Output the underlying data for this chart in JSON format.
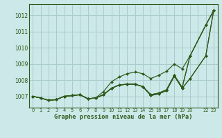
{
  "bg_color": "#cce8e8",
  "grid_color": "#aacccc",
  "line_color": "#2d5a1b",
  "title": "Graphe pression niveau de la mer (hPa)",
  "title_color": "#2d5a1b",
  "xlim": [
    -0.5,
    23.5
  ],
  "ylim": [
    1006.3,
    1012.7
  ],
  "yticks": [
    1007,
    1008,
    1009,
    1010,
    1011,
    1012
  ],
  "xtick_labels": [
    "0",
    "1",
    "2",
    "3",
    "4",
    "5",
    "6",
    "7",
    "8",
    "9",
    "10",
    "11",
    "12",
    "13",
    "14",
    "15",
    "16",
    "17",
    "18",
    "19",
    "20",
    "",
    "22",
    "23"
  ],
  "series": [
    {
      "x": [
        0,
        1,
        2,
        3,
        4,
        5,
        6,
        7,
        8,
        9,
        10,
        11,
        12,
        13,
        14,
        15,
        16,
        17,
        18,
        19,
        20,
        22,
        23
      ],
      "y": [
        1007.0,
        1006.9,
        1006.75,
        1006.8,
        1007.0,
        1007.05,
        1007.1,
        1006.85,
        1006.9,
        1007.3,
        1007.9,
        1008.2,
        1008.4,
        1008.5,
        1008.4,
        1008.1,
        1008.3,
        1008.55,
        1009.0,
        1008.7,
        1009.5,
        1011.4,
        1012.3
      ]
    },
    {
      "x": [
        0,
        1,
        2,
        3,
        4,
        5,
        6,
        7,
        8,
        9,
        10,
        11,
        12,
        13,
        14,
        15,
        16,
        17,
        18,
        19,
        20,
        22,
        23
      ],
      "y": [
        1007.0,
        1006.9,
        1006.75,
        1006.8,
        1007.0,
        1007.05,
        1007.1,
        1006.85,
        1006.9,
        1007.1,
        1007.5,
        1007.7,
        1007.75,
        1007.75,
        1007.6,
        1007.1,
        1007.2,
        1007.4,
        1008.3,
        1007.55,
        1009.5,
        1011.4,
        1012.3
      ]
    },
    {
      "x": [
        0,
        1,
        2,
        3,
        4,
        5,
        6,
        7,
        8,
        9,
        10,
        11,
        12,
        13,
        14,
        15,
        16,
        17,
        18,
        19,
        20,
        22,
        23
      ],
      "y": [
        1007.0,
        1006.9,
        1006.75,
        1006.8,
        1007.0,
        1007.05,
        1007.1,
        1006.85,
        1006.9,
        1007.1,
        1007.5,
        1007.7,
        1007.75,
        1007.75,
        1007.6,
        1007.1,
        1007.2,
        1007.4,
        1008.3,
        1007.55,
        1009.5,
        1011.4,
        1012.3
      ]
    },
    {
      "x": [
        0,
        1,
        2,
        3,
        4,
        5,
        6,
        7,
        8,
        9,
        10,
        11,
        12,
        13,
        14,
        15,
        16,
        17,
        18,
        19,
        20,
        22,
        23
      ],
      "y": [
        1007.0,
        1006.9,
        1006.75,
        1006.8,
        1007.0,
        1007.05,
        1007.1,
        1006.85,
        1006.9,
        1007.1,
        1007.5,
        1007.7,
        1007.75,
        1007.75,
        1007.6,
        1007.05,
        1007.15,
        1007.35,
        1008.25,
        1007.5,
        1008.1,
        1009.5,
        1012.3
      ]
    },
    {
      "x": [
        0,
        1,
        2,
        3,
        4,
        5,
        6,
        7,
        8,
        9,
        10,
        11,
        12,
        13,
        14,
        15,
        16,
        17,
        18,
        19,
        20,
        22,
        23
      ],
      "y": [
        1007.0,
        1006.9,
        1006.75,
        1006.8,
        1007.0,
        1007.05,
        1007.1,
        1006.85,
        1006.9,
        1007.1,
        1007.5,
        1007.7,
        1007.75,
        1007.75,
        1007.6,
        1007.05,
        1007.15,
        1007.35,
        1008.25,
        1007.5,
        1008.1,
        1009.5,
        1012.3
      ]
    }
  ]
}
